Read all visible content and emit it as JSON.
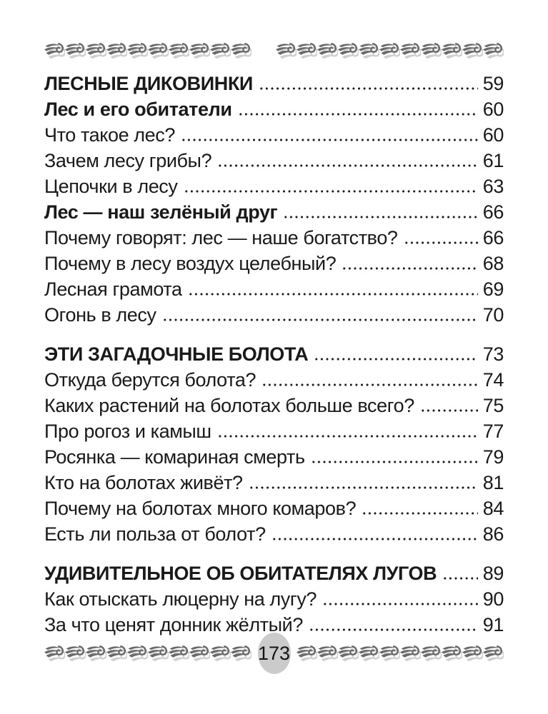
{
  "page": {
    "number": "173",
    "text_color": "#1a1a1a",
    "badge_color": "#cbcbcb",
    "ornament": {
      "icon": "wave-swirl-icon",
      "dark_color": "#6a6a6a",
      "light_color": "#cfcfcf",
      "top_left_count": 10,
      "top_right_count": 11,
      "bottom_left_count": 10,
      "bottom_right_count": 10
    }
  },
  "toc": {
    "entries": [
      {
        "title": "ЛЕСНЫЕ ДИКОВИНКИ",
        "page": "59",
        "style": "heading",
        "gap_before": false
      },
      {
        "title": "Лес и его обитатели",
        "page": "60",
        "style": "bold",
        "gap_before": false
      },
      {
        "title": "Что такое лес?",
        "page": "60",
        "style": "normal",
        "gap_before": false
      },
      {
        "title": "Зачем лесу грибы?",
        "page": "61",
        "style": "normal",
        "gap_before": false
      },
      {
        "title": "Цепочки в лесу",
        "page": "63",
        "style": "normal",
        "gap_before": false
      },
      {
        "title": "Лес — наш зелёный друг",
        "page": "66",
        "style": "bold",
        "gap_before": false
      },
      {
        "title": "Почему говорят: лес — наше богатство?",
        "page": "66",
        "style": "normal",
        "gap_before": false
      },
      {
        "title": "Почему в лесу воздух целебный?",
        "page": "68",
        "style": "normal",
        "gap_before": false
      },
      {
        "title": "Лесная грамота",
        "page": "69",
        "style": "normal",
        "gap_before": false
      },
      {
        "title": "Огонь в лесу",
        "page": "70",
        "style": "normal",
        "gap_before": false
      },
      {
        "title": "ЭТИ ЗАГАДОЧНЫЕ БОЛОТА",
        "page": "73",
        "style": "heading",
        "gap_before": true
      },
      {
        "title": "Откуда берутся болота?",
        "page": "74",
        "style": "normal",
        "gap_before": false
      },
      {
        "title": "Каких растений на болотах больше всего?",
        "page": "75",
        "style": "normal",
        "gap_before": false
      },
      {
        "title": "Про рогоз и камыш",
        "page": "77",
        "style": "normal",
        "gap_before": false
      },
      {
        "title": "Росянка — комариная смерть",
        "page": "79",
        "style": "normal",
        "gap_before": false
      },
      {
        "title": "Кто на болотах живёт?",
        "page": "81",
        "style": "normal",
        "gap_before": false
      },
      {
        "title": "Почему на болотах много комаров?",
        "page": "84",
        "style": "normal",
        "gap_before": false
      },
      {
        "title": "Есть ли польза от болот?",
        "page": "86",
        "style": "normal",
        "gap_before": false
      },
      {
        "title": "УДИВИТЕЛЬНОЕ ОБ ОБИТАТЕЛЯХ ЛУГОВ",
        "page": "89",
        "style": "heading",
        "gap_before": true
      },
      {
        "title": "Как отыскать люцерну на лугу?",
        "page": "90",
        "style": "normal",
        "gap_before": false
      },
      {
        "title": "За что ценят донник жёлтый?",
        "page": "91",
        "style": "normal",
        "gap_before": false
      }
    ]
  }
}
